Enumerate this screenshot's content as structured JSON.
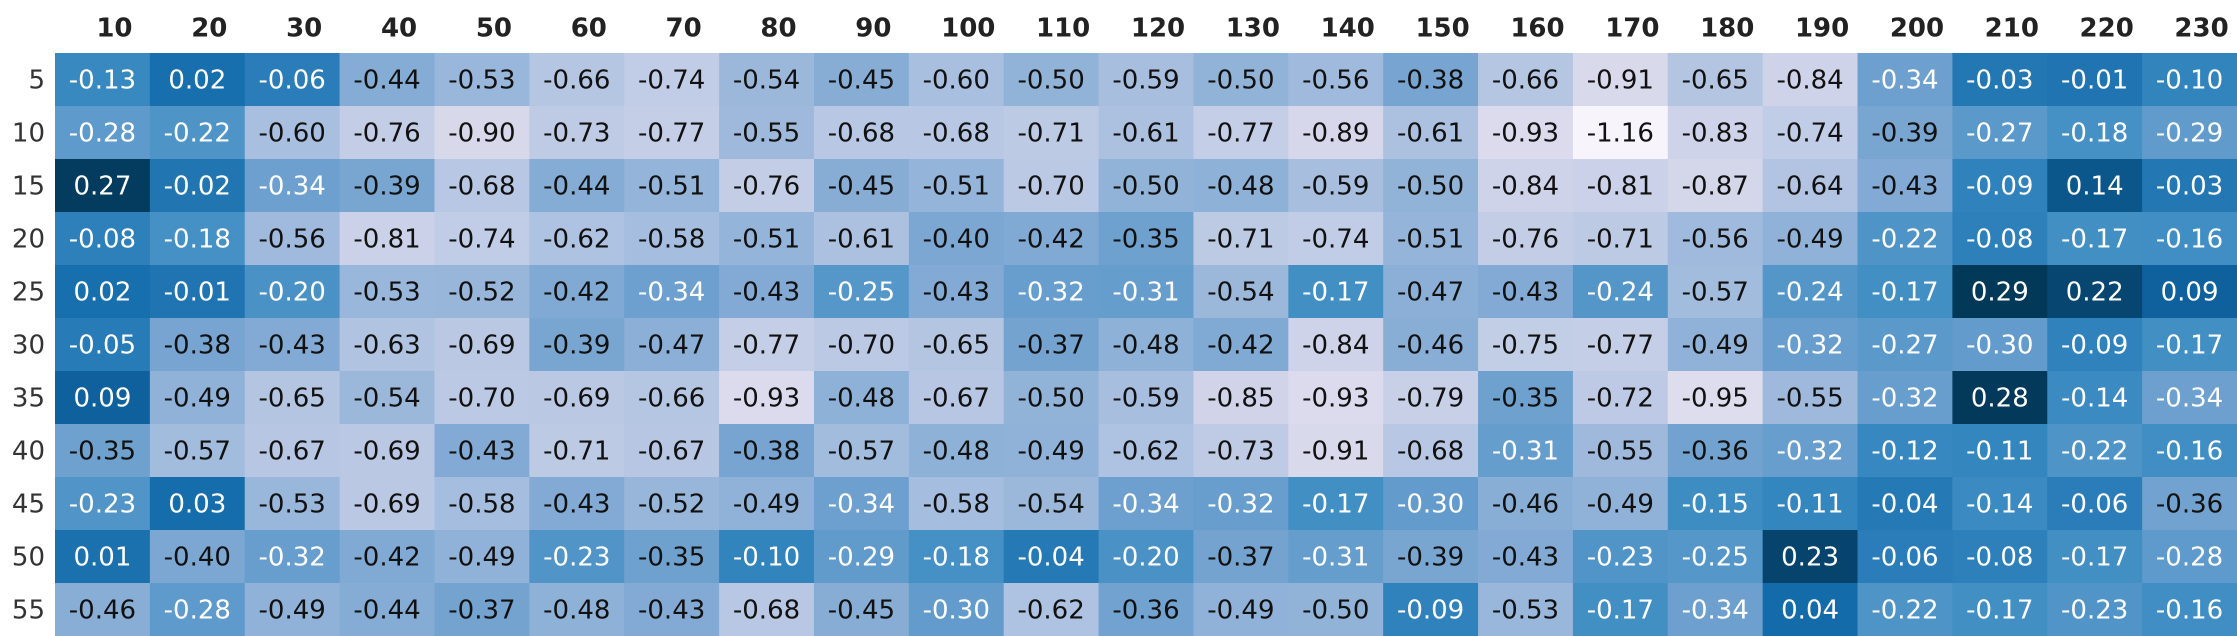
{
  "chart_data": {
    "type": "heatmap",
    "title": "",
    "xlabel": "",
    "ylabel": "",
    "columns": [
      "10",
      "20",
      "30",
      "40",
      "50",
      "60",
      "70",
      "80",
      "90",
      "100",
      "110",
      "120",
      "130",
      "140",
      "150",
      "160",
      "170",
      "180",
      "190",
      "200",
      "210",
      "220",
      "230"
    ],
    "rows": [
      "5",
      "10",
      "15",
      "20",
      "25",
      "30",
      "35",
      "40",
      "45",
      "50",
      "55"
    ],
    "values": [
      [
        "-0.13",
        "0.02",
        "-0.06",
        "-0.44",
        "-0.53",
        "-0.66",
        "-0.74",
        "-0.54",
        "-0.45",
        "-0.60",
        "-0.50",
        "-0.59",
        "-0.50",
        "-0.56",
        "-0.38",
        "-0.66",
        "-0.91",
        "-0.65",
        "-0.84",
        "-0.34",
        "-0.03",
        "-0.01",
        "-0.10"
      ],
      [
        "-0.28",
        "-0.22",
        "-0.60",
        "-0.76",
        "-0.90",
        "-0.73",
        "-0.77",
        "-0.55",
        "-0.68",
        "-0.68",
        "-0.71",
        "-0.61",
        "-0.77",
        "-0.89",
        "-0.61",
        "-0.93",
        "-1.16",
        "-0.83",
        "-0.74",
        "-0.39",
        "-0.27",
        "-0.18",
        "-0.29"
      ],
      [
        "0.27",
        "-0.02",
        "-0.34",
        "-0.39",
        "-0.68",
        "-0.44",
        "-0.51",
        "-0.76",
        "-0.45",
        "-0.51",
        "-0.70",
        "-0.50",
        "-0.48",
        "-0.59",
        "-0.50",
        "-0.84",
        "-0.81",
        "-0.87",
        "-0.64",
        "-0.43",
        "-0.09",
        "0.14",
        "-0.03"
      ],
      [
        "-0.08",
        "-0.18",
        "-0.56",
        "-0.81",
        "-0.74",
        "-0.62",
        "-0.58",
        "-0.51",
        "-0.61",
        "-0.40",
        "-0.42",
        "-0.35",
        "-0.71",
        "-0.74",
        "-0.51",
        "-0.76",
        "-0.71",
        "-0.56",
        "-0.49",
        "-0.22",
        "-0.08",
        "-0.17",
        "-0.16"
      ],
      [
        "0.02",
        "-0.01",
        "-0.20",
        "-0.53",
        "-0.52",
        "-0.42",
        "-0.34",
        "-0.43",
        "-0.25",
        "-0.43",
        "-0.32",
        "-0.31",
        "-0.54",
        "-0.17",
        "-0.47",
        "-0.43",
        "-0.24",
        "-0.57",
        "-0.24",
        "-0.17",
        "0.29",
        "0.22",
        "0.09"
      ],
      [
        "-0.05",
        "-0.38",
        "-0.43",
        "-0.63",
        "-0.69",
        "-0.39",
        "-0.47",
        "-0.77",
        "-0.70",
        "-0.65",
        "-0.37",
        "-0.48",
        "-0.42",
        "-0.84",
        "-0.46",
        "-0.75",
        "-0.77",
        "-0.49",
        "-0.32",
        "-0.27",
        "-0.30",
        "-0.09",
        "-0.17"
      ],
      [
        "0.09",
        "-0.49",
        "-0.65",
        "-0.54",
        "-0.70",
        "-0.69",
        "-0.66",
        "-0.93",
        "-0.48",
        "-0.67",
        "-0.50",
        "-0.59",
        "-0.85",
        "-0.93",
        "-0.79",
        "-0.35",
        "-0.72",
        "-0.95",
        "-0.55",
        "-0.32",
        "0.28",
        "-0.14",
        "-0.34"
      ],
      [
        "-0.35",
        "-0.57",
        "-0.67",
        "-0.69",
        "-0.43",
        "-0.71",
        "-0.67",
        "-0.38",
        "-0.57",
        "-0.48",
        "-0.49",
        "-0.62",
        "-0.73",
        "-0.91",
        "-0.68",
        "-0.31",
        "-0.55",
        "-0.36",
        "-0.32",
        "-0.12",
        "-0.11",
        "-0.22",
        "-0.16"
      ],
      [
        "-0.23",
        "0.03",
        "-0.53",
        "-0.69",
        "-0.58",
        "-0.43",
        "-0.52",
        "-0.49",
        "-0.34",
        "-0.58",
        "-0.54",
        "-0.34",
        "-0.32",
        "-0.17",
        "-0.30",
        "-0.46",
        "-0.49",
        "-0.15",
        "-0.11",
        "-0.04",
        "-0.14",
        "-0.06",
        "-0.36"
      ],
      [
        "0.01",
        "-0.40",
        "-0.32",
        "-0.42",
        "-0.49",
        "-0.23",
        "-0.35",
        "-0.10",
        "-0.29",
        "-0.18",
        "-0.04",
        "-0.20",
        "-0.37",
        "-0.31",
        "-0.39",
        "-0.43",
        "-0.23",
        "-0.25",
        "0.23",
        "-0.06",
        "-0.08",
        "-0.17",
        "-0.28"
      ],
      [
        "-0.46",
        "-0.28",
        "-0.49",
        "-0.44",
        "-0.37",
        "-0.48",
        "-0.43",
        "-0.68",
        "-0.45",
        "-0.30",
        "-0.62",
        "-0.36",
        "-0.49",
        "-0.50",
        "-0.09",
        "-0.53",
        "-0.17",
        "-0.34",
        "0.04",
        "-0.22",
        "-0.17",
        "-0.23",
        "-0.16"
      ]
    ],
    "color_scale": {
      "low": "#f7f4fb",
      "mid": "#3f8fc5",
      "high": "#023858",
      "range": [
        -1.16,
        0.29
      ]
    },
    "legend": "none",
    "grid": false
  }
}
